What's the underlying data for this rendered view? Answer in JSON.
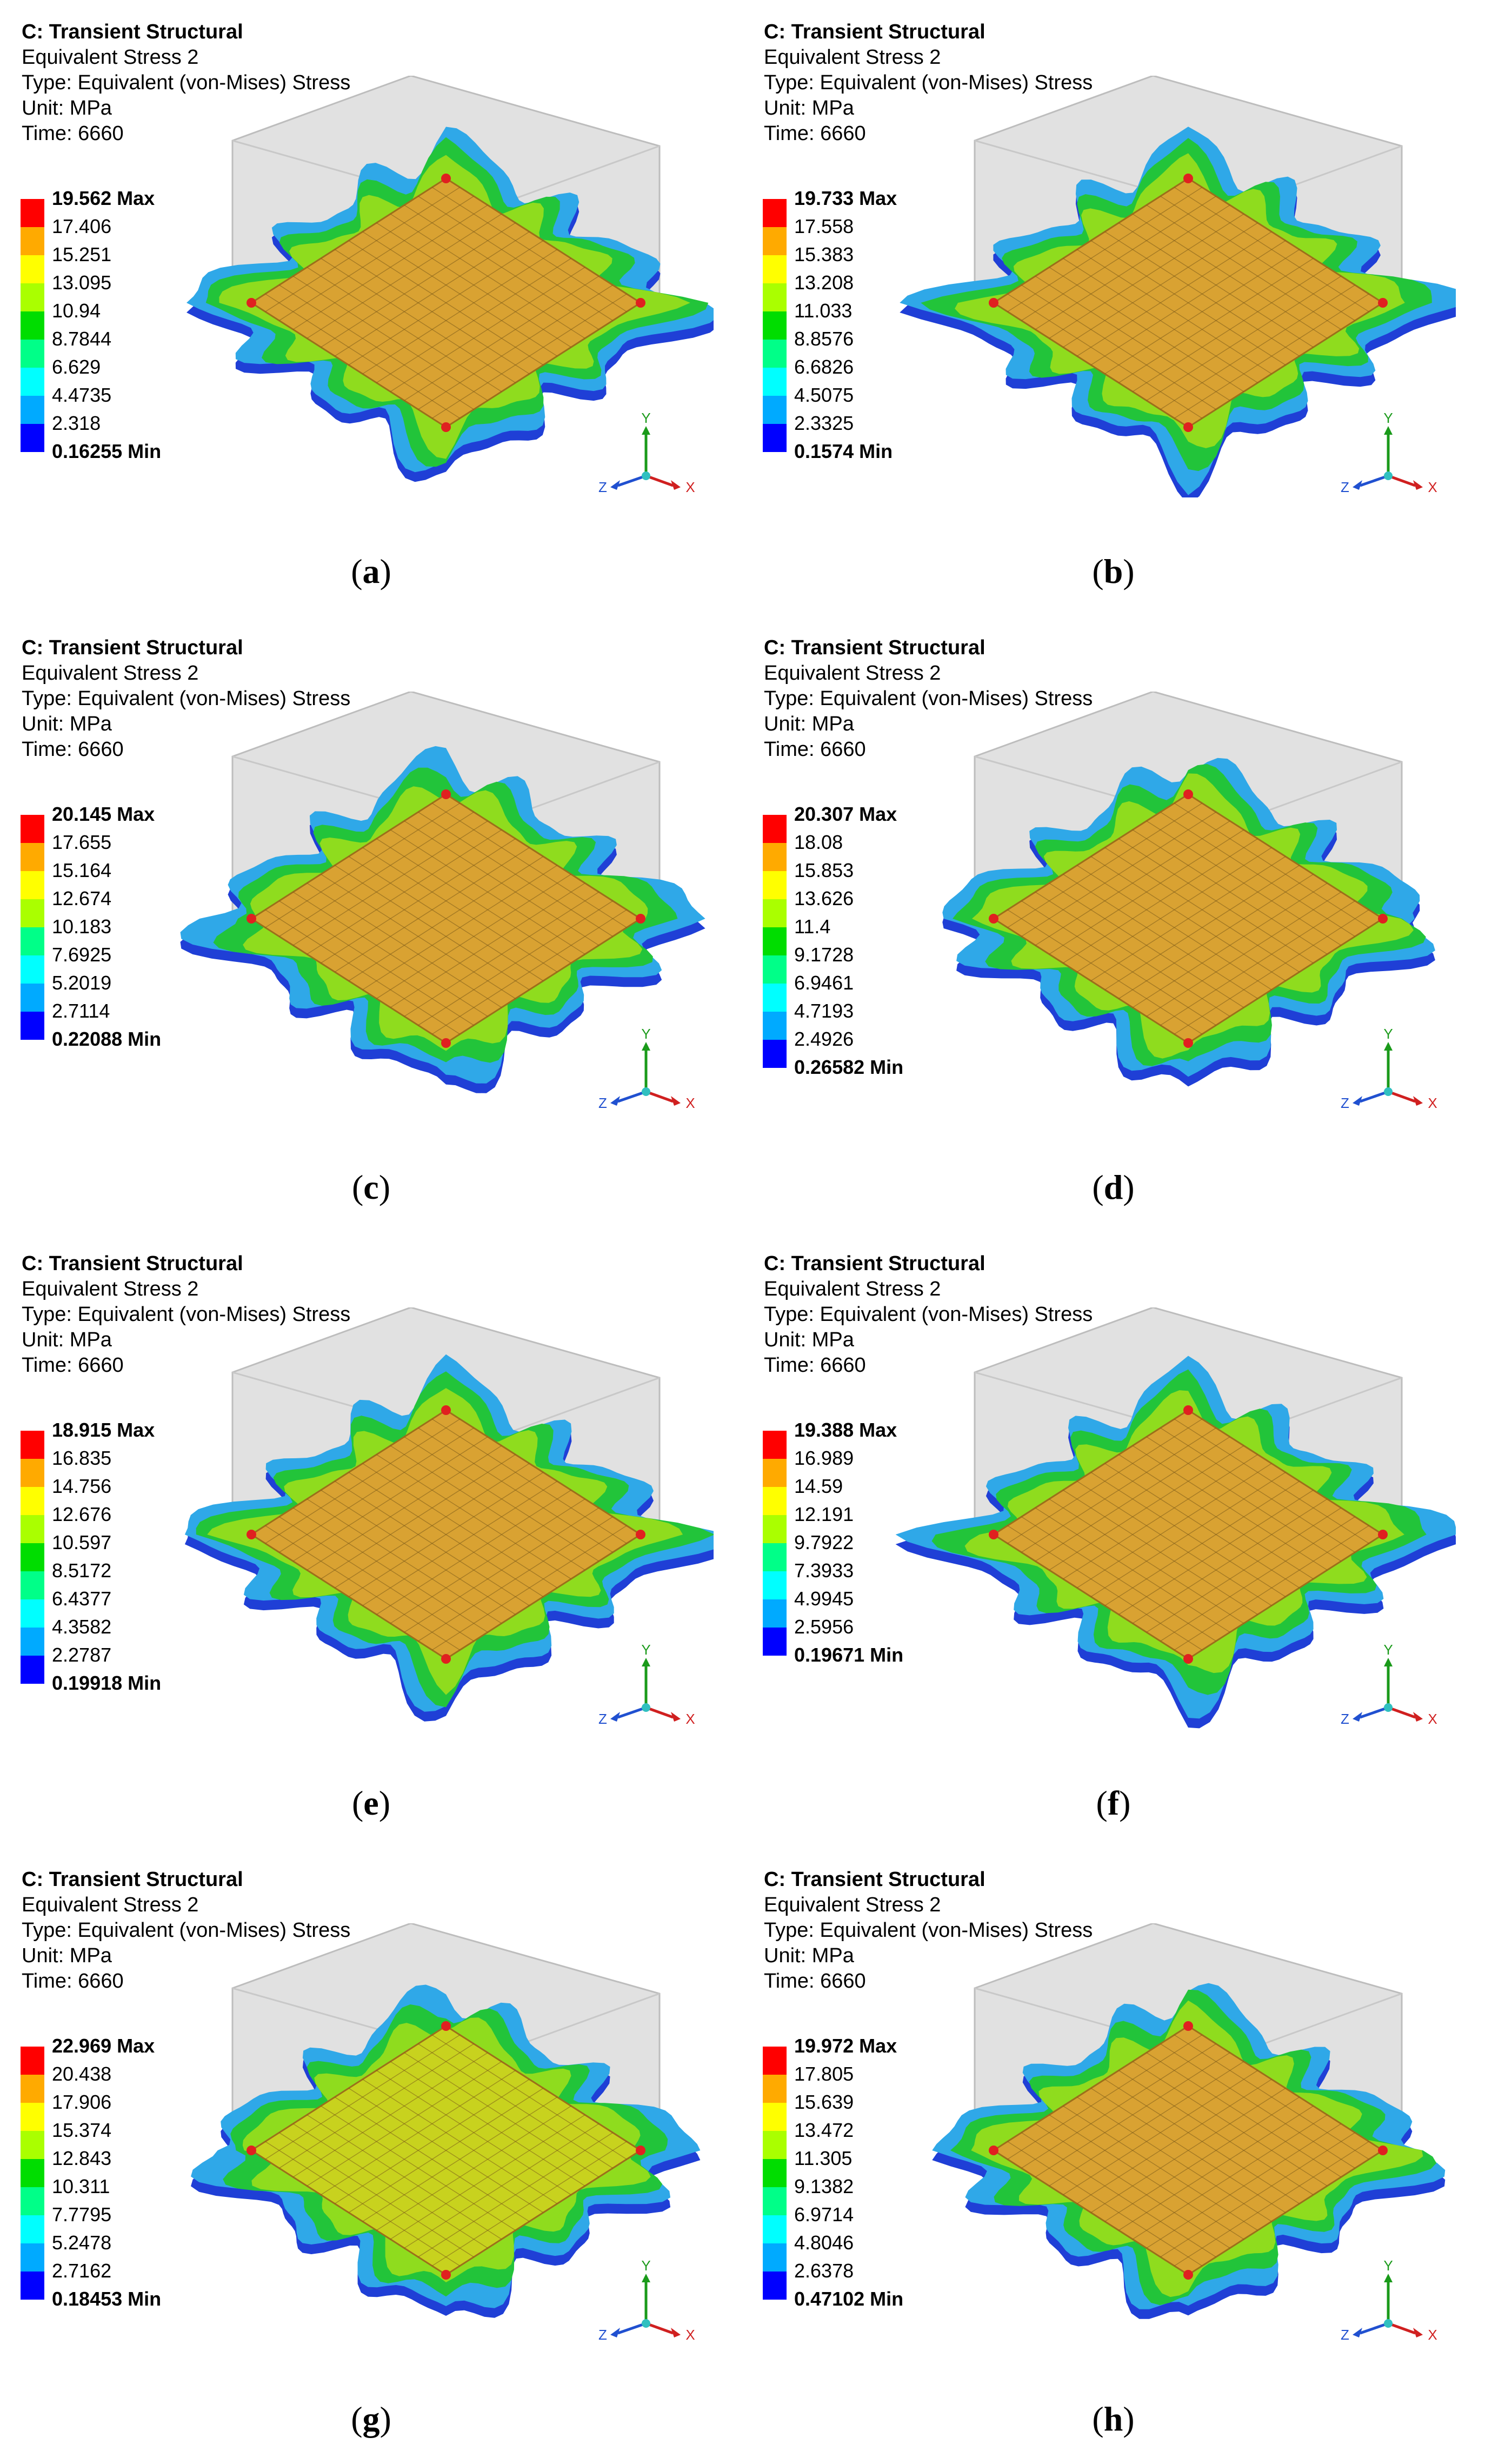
{
  "common": {
    "title": "C: Transient Structural",
    "result": "Equivalent Stress 2",
    "type": "Type: Equivalent (von-Mises) Stress",
    "unit": "Unit: MPa",
    "time": "Time: 6660"
  },
  "axes_labels": {
    "y": "Y",
    "x": "X",
    "z": "Z"
  },
  "legend_colors": [
    "#ff0000",
    "#ffaa00",
    "#ffff00",
    "#aaff00",
    "#00dd00",
    "#00ff88",
    "#00ffff",
    "#00aaff",
    "#0000ff"
  ],
  "panels": [
    {
      "caption_open": "(",
      "letter": "a",
      "caption_close": ")",
      "legend": [
        "19.562 Max",
        "17.406",
        "15.251",
        "13.095",
        "10.94",
        "8.7844",
        "6.629",
        "4.4735",
        "2.318",
        "0.16255 Min"
      ]
    },
    {
      "caption_open": "(",
      "letter": "b",
      "caption_close": ")",
      "legend": [
        "19.733 Max",
        "17.558",
        "15.383",
        "13.208",
        "11.033",
        "8.8576",
        "6.6826",
        "4.5075",
        "2.3325",
        "0.1574 Min"
      ]
    },
    {
      "caption_open": "(",
      "letter": "c",
      "caption_close": ")",
      "legend": [
        "20.145 Max",
        "17.655",
        "15.164",
        "12.674",
        "10.183",
        "7.6925",
        "5.2019",
        "2.7114",
        "0.22088 Min"
      ]
    },
    {
      "caption_open": "(",
      "letter": "d",
      "caption_close": ")",
      "legend": [
        "20.307 Max",
        "18.08",
        "15.853",
        "13.626",
        "11.4",
        "9.1728",
        "6.9461",
        "4.7193",
        "2.4926",
        "0.26582 Min"
      ]
    },
    {
      "caption_open": "(",
      "letter": "e",
      "caption_close": ")",
      "legend": [
        "18.915 Max",
        "16.835",
        "14.756",
        "12.676",
        "10.597",
        "8.5172",
        "6.4377",
        "4.3582",
        "2.2787",
        "0.19918 Min"
      ]
    },
    {
      "caption_open": "(",
      "letter": "f",
      "caption_close": ")",
      "legend": [
        "19.388 Max",
        "16.989",
        "14.59",
        "12.191",
        "9.7922",
        "7.3933",
        "4.9945",
        "2.5956",
        "0.19671 Min"
      ]
    },
    {
      "caption_open": "(",
      "letter": "g",
      "caption_close": ")",
      "legend": [
        "22.969 Max",
        "20.438",
        "17.906",
        "15.374",
        "12.843",
        "10.311",
        "7.7795",
        "5.2478",
        "2.7162",
        "0.18453 Min"
      ]
    },
    {
      "caption_open": "(",
      "letter": "h",
      "caption_close": ")",
      "legend": [
        "19.972 Max",
        "17.805",
        "15.639",
        "13.472",
        "11.305",
        "9.1382",
        "6.9714",
        "4.8046",
        "2.6378",
        "0.47102 Min"
      ]
    }
  ]
}
